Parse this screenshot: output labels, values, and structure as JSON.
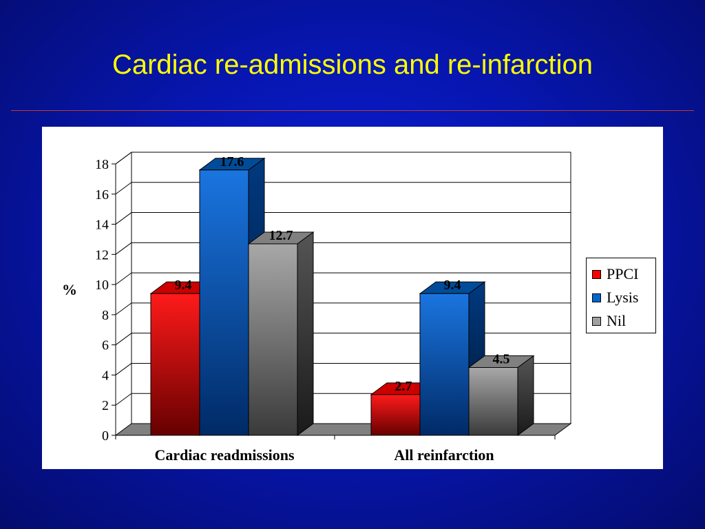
{
  "slide": {
    "title": "Cardiac re-admissions and re-infarction"
  },
  "chart_data": {
    "type": "bar",
    "style": "3d-clustered-column",
    "title": "",
    "xlabel": "",
    "ylabel": "%",
    "ylim": [
      0,
      18
    ],
    "yticks": [
      0,
      2,
      4,
      6,
      8,
      10,
      12,
      14,
      16,
      18
    ],
    "grid": true,
    "legend_position": "right",
    "categories": [
      "Cardiac readmissions",
      "All reinfarction"
    ],
    "series": [
      {
        "name": "PPCI",
        "values": [
          9.4,
          2.7
        ],
        "color": "#ff0000"
      },
      {
        "name": "Lysis",
        "values": [
          17.6,
          9.4
        ],
        "color": "#0066cc"
      },
      {
        "name": "Nil",
        "values": [
          12.7,
          4.5
        ],
        "color": "#a0a0a0"
      }
    ],
    "data_labels": [
      [
        "9.4",
        "2.7"
      ],
      [
        "17.6",
        "9.4"
      ],
      [
        "12.7",
        "4.5"
      ]
    ]
  }
}
